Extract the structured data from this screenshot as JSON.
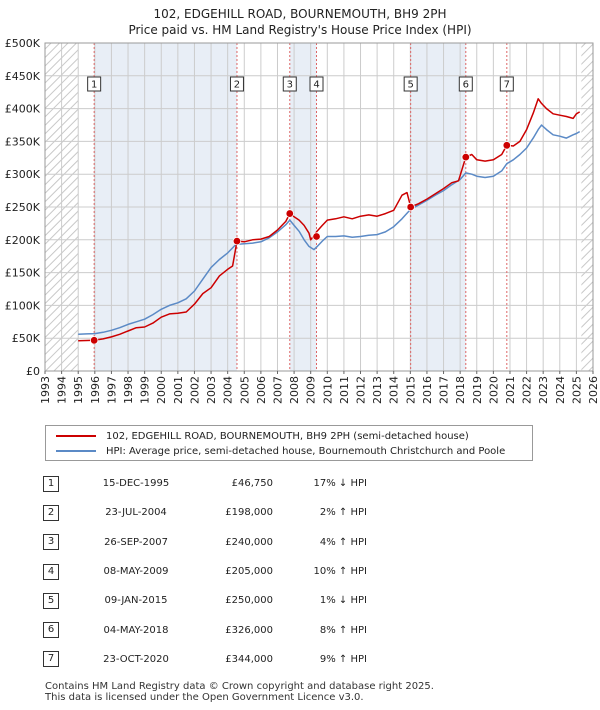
{
  "title_line1": "102, EDGEHILL ROAD, BOURNEMOUTH, BH9 2PH",
  "title_line2": "Price paid vs. HM Land Registry's House Price Index (HPI)",
  "colors": {
    "property": "#cc0000",
    "hpi": "#5b8ac6",
    "grid": "#cccccc",
    "shade": "#e8eef6",
    "marker_line": "#dd6666"
  },
  "chart_data": {
    "type": "line",
    "title": "Price paid vs. HM Land Registry's House Price Index (HPI)",
    "xlabel": "",
    "ylabel": "",
    "xlim": [
      1993,
      2026
    ],
    "ylim": [
      0,
      500000
    ],
    "x_ticks": [
      "1993",
      "1994",
      "1995",
      "1996",
      "1997",
      "1998",
      "1999",
      "2000",
      "2001",
      "2002",
      "2003",
      "2004",
      "2005",
      "2006",
      "2007",
      "2008",
      "2009",
      "2010",
      "2011",
      "2012",
      "2013",
      "2014",
      "2015",
      "2016",
      "2017",
      "2018",
      "2019",
      "2020",
      "2021",
      "2022",
      "2023",
      "2024",
      "2025",
      "2026"
    ],
    "y_ticks": [
      {
        "value": 0,
        "label": "£0"
      },
      {
        "value": 50000,
        "label": "£50K"
      },
      {
        "value": 100000,
        "label": "£100K"
      },
      {
        "value": 150000,
        "label": "£150K"
      },
      {
        "value": 200000,
        "label": "£200K"
      },
      {
        "value": 250000,
        "label": "£250K"
      },
      {
        "value": 300000,
        "label": "£300K"
      },
      {
        "value": 350000,
        "label": "£350K"
      },
      {
        "value": 400000,
        "label": "£400K"
      },
      {
        "value": 450000,
        "label": "£450K"
      },
      {
        "value": 500000,
        "label": "£500K"
      }
    ],
    "hatched_ranges": [
      [
        1993,
        1995
      ],
      [
        2025.3,
        2026
      ]
    ],
    "series": [
      {
        "name": "102, EDGEHILL ROAD, BOURNEMOUTH, BH9 2PH (semi-detached house)",
        "x": [
          1995.0,
          1995.5,
          1995.96,
          1996.5,
          1997.0,
          1997.5,
          1998.0,
          1998.5,
          1999.0,
          1999.5,
          2000.0,
          2000.5,
          2001.0,
          2001.5,
          2002.0,
          2002.5,
          2003.0,
          2003.5,
          2004.0,
          2004.3,
          2004.56,
          2005.0,
          2005.5,
          2006.0,
          2006.5,
          2007.0,
          2007.5,
          2007.74,
          2008.0,
          2008.3,
          2008.6,
          2008.9,
          2009.0,
          2009.15,
          2009.35,
          2009.7,
          2010.0,
          2010.5,
          2011.0,
          2011.5,
          2012.0,
          2012.5,
          2013.0,
          2013.5,
          2014.0,
          2014.5,
          2014.8,
          2015.02,
          2015.5,
          2016.0,
          2016.5,
          2017.0,
          2017.5,
          2017.9,
          2018.34,
          2018.7,
          2019.0,
          2019.5,
          2020.0,
          2020.5,
          2020.81,
          2021.2,
          2021.6,
          2022.0,
          2022.4,
          2022.7,
          2022.9,
          2023.2,
          2023.6,
          2024.0,
          2024.4,
          2024.8,
          2025.0,
          2025.2
        ],
        "values": [
          46000,
          46500,
          46750,
          49000,
          52000,
          56000,
          61000,
          66000,
          67000,
          73000,
          82000,
          87000,
          88000,
          90000,
          102000,
          118000,
          127000,
          145000,
          155000,
          160000,
          198000,
          197000,
          200000,
          201000,
          205000,
          215000,
          228000,
          240000,
          235000,
          230000,
          222000,
          210000,
          200000,
          205000,
          212000,
          222000,
          230000,
          232000,
          235000,
          232000,
          236000,
          238000,
          236000,
          240000,
          245000,
          268000,
          272000,
          250000,
          255000,
          262000,
          270000,
          278000,
          287000,
          290000,
          326000,
          330000,
          322000,
          320000,
          322000,
          330000,
          344000,
          343000,
          350000,
          368000,
          393000,
          415000,
          408000,
          400000,
          392000,
          390000,
          388000,
          385000,
          392000,
          395000
        ]
      },
      {
        "name": "HPI: Average price, semi-detached house, Bournemouth Christchurch and Poole",
        "x": [
          1995.0,
          1995.5,
          1996.0,
          1996.5,
          1997.0,
          1997.5,
          1998.0,
          1998.5,
          1999.0,
          1999.5,
          2000.0,
          2000.5,
          2001.0,
          2001.5,
          2002.0,
          2002.5,
          2003.0,
          2003.5,
          2004.0,
          2004.5,
          2005.0,
          2005.5,
          2006.0,
          2006.5,
          2007.0,
          2007.5,
          2007.74,
          2008.0,
          2008.3,
          2008.6,
          2008.9,
          2009.2,
          2009.4,
          2009.7,
          2010.0,
          2010.5,
          2011.0,
          2011.5,
          2012.0,
          2012.5,
          2013.0,
          2013.5,
          2014.0,
          2014.5,
          2015.0,
          2015.5,
          2016.0,
          2016.5,
          2017.0,
          2017.5,
          2018.0,
          2018.34,
          2018.7,
          2019.0,
          2019.5,
          2020.0,
          2020.5,
          2020.81,
          2021.2,
          2021.6,
          2022.0,
          2022.4,
          2022.7,
          2022.9,
          2023.2,
          2023.6,
          2024.0,
          2024.4,
          2024.8,
          2025.0,
          2025.2
        ],
        "values": [
          56000,
          56500,
          57000,
          59000,
          62000,
          66000,
          71000,
          75000,
          79000,
          86000,
          94000,
          100000,
          104000,
          110000,
          122000,
          140000,
          158000,
          170000,
          180000,
          193000,
          194000,
          195000,
          197000,
          203000,
          212000,
          223000,
          230000,
          222000,
          213000,
          200000,
          190000,
          185000,
          190000,
          198000,
          205000,
          205000,
          206000,
          204000,
          205000,
          207000,
          208000,
          212000,
          220000,
          232000,
          246000,
          253000,
          260000,
          268000,
          275000,
          284000,
          292000,
          302000,
          300000,
          297000,
          295000,
          297000,
          305000,
          316000,
          322000,
          330000,
          340000,
          355000,
          368000,
          375000,
          368000,
          360000,
          358000,
          355000,
          360000,
          362000,
          365000
        ]
      }
    ],
    "sales": [
      {
        "n": "1",
        "x": 1995.96,
        "y": 46750
      },
      {
        "n": "2",
        "x": 2004.56,
        "y": 198000
      },
      {
        "n": "3",
        "x": 2007.74,
        "y": 240000
      },
      {
        "n": "4",
        "x": 2009.35,
        "y": 205000
      },
      {
        "n": "5",
        "x": 2015.02,
        "y": 250000
      },
      {
        "n": "6",
        "x": 2018.34,
        "y": 326000
      },
      {
        "n": "7",
        "x": 2020.81,
        "y": 344000
      }
    ]
  },
  "legend": {
    "property": "102, EDGEHILL ROAD, BOURNEMOUTH, BH9 2PH (semi-detached house)",
    "hpi": "HPI: Average price, semi-detached house, Bournemouth Christchurch and Poole"
  },
  "table": [
    {
      "n": "1",
      "date": "15-DEC-1995",
      "price": "£46,750",
      "hpi": "17% ↓ HPI"
    },
    {
      "n": "2",
      "date": "23-JUL-2004",
      "price": "£198,000",
      "hpi": "2% ↑ HPI"
    },
    {
      "n": "3",
      "date": "26-SEP-2007",
      "price": "£240,000",
      "hpi": "4% ↑ HPI"
    },
    {
      "n": "4",
      "date": "08-MAY-2009",
      "price": "£205,000",
      "hpi": "10% ↑ HPI"
    },
    {
      "n": "5",
      "date": "09-JAN-2015",
      "price": "£250,000",
      "hpi": "1% ↓ HPI"
    },
    {
      "n": "6",
      "date": "04-MAY-2018",
      "price": "£326,000",
      "hpi": "8% ↑ HPI"
    },
    {
      "n": "7",
      "date": "23-OCT-2020",
      "price": "£344,000",
      "hpi": "9% ↑ HPI"
    }
  ],
  "footer_line1": "Contains HM Land Registry data © Crown copyright and database right 2025.",
  "footer_line2": "This data is licensed under the Open Government Licence v3.0."
}
